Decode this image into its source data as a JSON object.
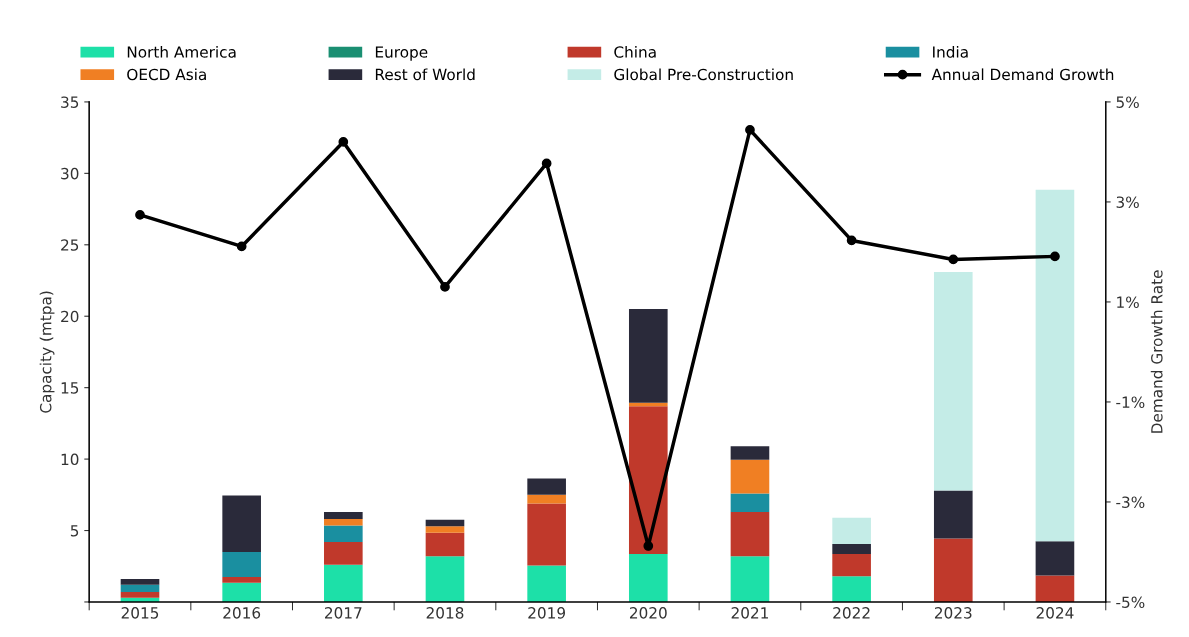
{
  "chart_data": {
    "type": "bar",
    "stacked": true,
    "ylabel": "Capacity (mtpa)",
    "y2label": "Demand Growth Rate",
    "categories": [
      "2015",
      "2016",
      "2017",
      "2018",
      "2019",
      "2020",
      "2021",
      "2022",
      "2023",
      "2024"
    ],
    "series": [
      {
        "name": "North America",
        "color": "#1de0a8",
        "values": [
          0.3,
          1.35,
          2.6,
          3.2,
          2.55,
          3.35,
          3.2,
          1.8,
          0,
          0
        ]
      },
      {
        "name": "Europe",
        "color": "#1a8f72",
        "values": [
          0,
          0,
          0,
          0,
          0,
          0,
          0,
          0,
          0,
          0
        ]
      },
      {
        "name": "China",
        "color": "#c0392b",
        "values": [
          0.4,
          0.4,
          1.6,
          1.65,
          4.35,
          10.35,
          3.1,
          1.55,
          4.45,
          1.85
        ]
      },
      {
        "name": "India",
        "color": "#1a8fa0",
        "values": [
          0.5,
          1.75,
          1.15,
          0,
          0,
          0,
          1.3,
          0,
          0,
          0
        ]
      },
      {
        "name": "OECD Asia",
        "color": "#f07f23",
        "values": [
          0,
          0,
          0.45,
          0.45,
          0.6,
          0.25,
          2.35,
          0,
          0,
          0
        ]
      },
      {
        "name": "Rest of World",
        "color": "#2a2a3a",
        "values": [
          0.4,
          3.95,
          0.5,
          0.45,
          1.15,
          6.55,
          0.95,
          0.7,
          3.35,
          2.4
        ]
      },
      {
        "name": "Global Pre-Construction",
        "color": "#c4ece7",
        "values": [
          0,
          0,
          0,
          0,
          0,
          0,
          0,
          1.85,
          15.3,
          24.6
        ]
      },
      {
        "name": "Annual Demand Growth",
        "type": "line",
        "axis": "y2",
        "color": "#000000",
        "marker": "circle",
        "values": [
          2.74,
          2.11,
          4.2,
          1.3,
          3.77,
          -3.88,
          4.44,
          2.23,
          1.85,
          1.91
        ]
      }
    ],
    "ylim": [
      0,
      35
    ],
    "yticks": [
      {
        "value": 0,
        "label": null
      },
      5,
      10,
      15,
      20,
      25,
      30,
      35
    ],
    "y2lim": [
      -5,
      5
    ],
    "y2ticks": [
      {
        "value": -5,
        "label": "-5%"
      },
      {
        "value": -3,
        "label": "-3%"
      },
      {
        "value": -1,
        "label": "-1%"
      },
      {
        "value": 1,
        "label": "1%"
      },
      {
        "value": 3,
        "label": "3%"
      },
      {
        "value": 5,
        "label": "5%"
      }
    ],
    "grid": false,
    "legend": "top"
  }
}
